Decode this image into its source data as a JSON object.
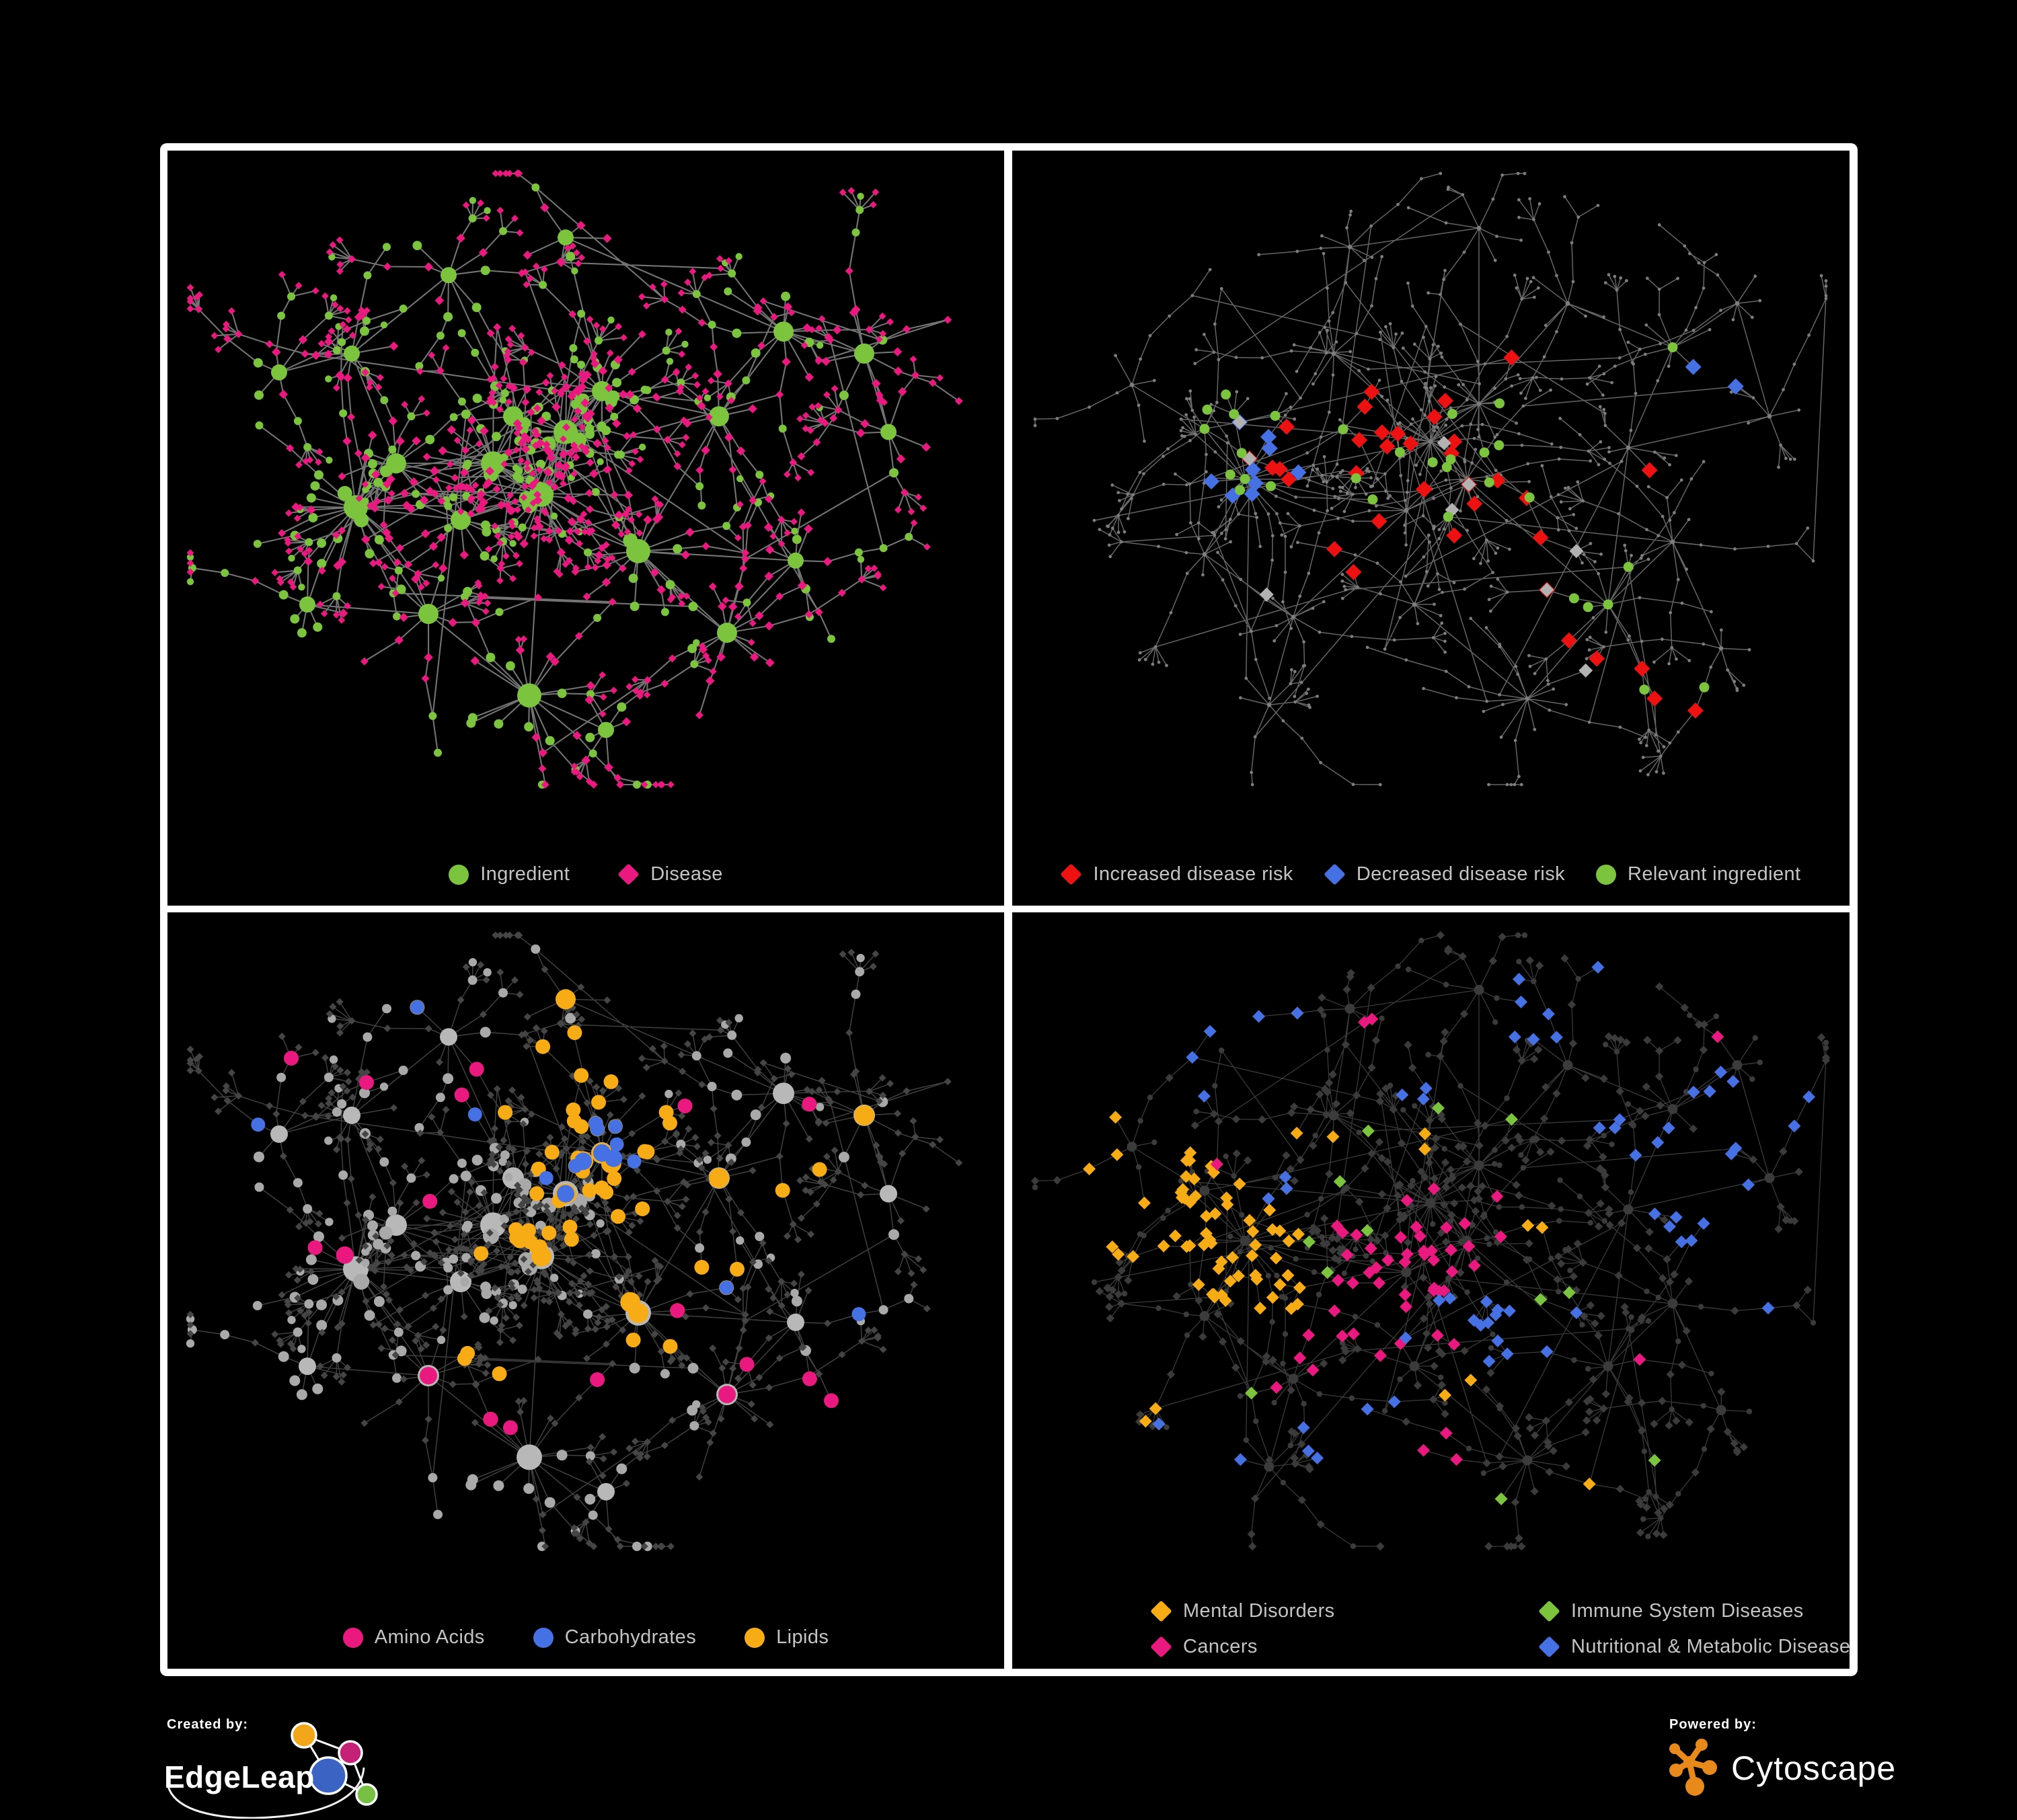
{
  "canvas": {
    "background": "#000000",
    "frame_border_color": "#ffffff"
  },
  "palette": {
    "green": "#7cc33e",
    "pink": "#e9197f",
    "red": "#ed1111",
    "blue": "#4571e4",
    "orange": "#f7ac15",
    "gray_marker": "#b2b2b2",
    "legend_text": "#c4c4c4"
  },
  "panels": [
    {
      "key": "ingredient-disease",
      "grid": "top-left",
      "legend": {
        "layout": "row",
        "items": [
          {
            "label": "Ingredient",
            "shape": "circle",
            "color": "#7cc33e"
          },
          {
            "label": "Disease",
            "shape": "diamond",
            "color": "#e9197f"
          }
        ]
      }
    },
    {
      "key": "disease-risk",
      "grid": "top-right",
      "legend": {
        "layout": "row-small-gap",
        "items": [
          {
            "label": "Increased disease risk",
            "shape": "diamond",
            "color": "#ed1111"
          },
          {
            "label": "Decreased disease risk",
            "shape": "diamond",
            "color": "#4571e4"
          },
          {
            "label": "Relevant ingredient",
            "shape": "circle",
            "color": "#7cc33e"
          }
        ]
      }
    },
    {
      "key": "nutrient-categories",
      "grid": "bottom-left",
      "legend": {
        "layout": "row",
        "items": [
          {
            "label": "Amino Acids",
            "shape": "circle",
            "color": "#e9197f"
          },
          {
            "label": "Carbohydrates",
            "shape": "circle",
            "color": "#4571e4"
          },
          {
            "label": "Lipids",
            "shape": "circle",
            "color": "#f7ac15"
          }
        ]
      }
    },
    {
      "key": "disease-categories",
      "grid": "bottom-right",
      "legend": {
        "layout": "grid-2col",
        "items": [
          {
            "label": "Mental Disorders",
            "shape": "diamond",
            "color": "#f7ac15"
          },
          {
            "label": "Immune System Diseases",
            "shape": "diamond",
            "color": "#7cc33e"
          },
          {
            "label": "Cancers",
            "shape": "diamond",
            "color": "#e9197f"
          },
          {
            "label": "Nutritional & Metabolic Diseases",
            "shape": "diamond",
            "color": "#4571e4"
          }
        ]
      }
    }
  ],
  "network_styles": {
    "p1": {
      "edge": "#8c8c8c",
      "ingredient": "#7cc33e",
      "disease": "#e9197f"
    },
    "p2": {
      "edge": "#6e6e6e",
      "node": "#7d7d7d",
      "increased": "#ed1111",
      "decreased": "#4571e4",
      "neutral": "#b2b2b2",
      "relevant": "#7cc33e"
    },
    "p3": {
      "edge": "#c8c8c8",
      "ingredient": "#a9a9a9",
      "disease": "#454545",
      "amino_acids": "#e9197f",
      "carbohydrates": "#4571e4",
      "lipids": "#f7ac15"
    },
    "p4": {
      "edge": "#a0a0a0",
      "node": "#3b3b3b",
      "mental": "#f7ac15",
      "immune": "#7cc33e",
      "cancers": "#e9197f",
      "nutritional": "#4571e4"
    }
  },
  "footer": {
    "created_by_label": "Created by:",
    "created_by_brand": "EdgeLeap",
    "powered_by_label": "Powered by:",
    "powered_by_brand": "Cytoscape",
    "edgeleap_node_colors": [
      "#f2a71b",
      "#c52277",
      "#3b63c4",
      "#77c043"
    ],
    "cytoscape_logo_color": "#e8891c"
  },
  "chart_data": [
    {
      "panel": "top-left",
      "type": "network",
      "description": "Ingredient-disease association network; green circles = ingredients (hubs larger), pink diamonds = diseases, gray association edges",
      "legend": [
        "Ingredient",
        "Disease"
      ],
      "approx_nodes": 870,
      "legend_position": "bottom"
    },
    {
      "panel": "top-right",
      "type": "network",
      "description": "Sparse gray dendritic network with highlighted nodes: red diamonds = increased disease risk, blue diamonds = decreased disease risk, gray diamonds = unclassified, green circles = relevant ingredients",
      "legend": [
        "Increased disease risk",
        "Decreased disease risk",
        "Relevant ingredient"
      ],
      "approx_highlights": {
        "red": 34,
        "blue": 11,
        "gray": 9,
        "green": 31
      },
      "legend_position": "bottom"
    },
    {
      "panel": "bottom-left",
      "type": "network",
      "description": "Same topology as top-left; ingredient circles gray unless in nutrient class: pink = Amino Acids, blue = Carbohydrates, orange = Lipids; diseases are small dark diamonds",
      "legend": [
        "Amino Acids",
        "Carbohydrates",
        "Lipids"
      ],
      "approx_highlights": {
        "lipids": 65,
        "carbohydrates": 16,
        "amino_acids": 20
      },
      "legend_position": "bottom"
    },
    {
      "panel": "bottom-right",
      "type": "network",
      "description": "Same topology as top-right; disease diamonds dark gray unless in class: orange = Mental Disorders (dense left cluster), pink = Cancers (center), blue = Nutritional & Metabolic Diseases (right/top), green = Immune System Diseases (scattered)",
      "legend": [
        "Mental Disorders",
        "Immune System Diseases",
        "Cancers",
        "Nutritional & Metabolic Diseases"
      ],
      "approx_highlights": {
        "orange": 80,
        "pink": 62,
        "blue": 55,
        "green": 12
      },
      "legend_position": "bottom"
    }
  ]
}
